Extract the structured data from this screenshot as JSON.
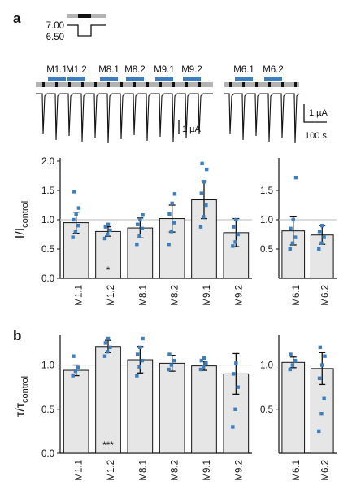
{
  "panels": {
    "a": "a",
    "b": "b"
  },
  "protocol": {
    "ph_high": "7.00",
    "ph_low": "6.50"
  },
  "trace": {
    "left_labels": [
      "M1.1",
      "M1.2",
      "M8.1",
      "M8.2",
      "M9.1",
      "M9.2"
    ],
    "right_labels": [
      "M6.1",
      "M6.2"
    ],
    "scale_left": "1 µA",
    "scale_right_current": "1 µA",
    "scale_right_time": "100 s",
    "colors": {
      "application_bar": "#3d7ebf",
      "ph_bar": "#b3b3b3",
      "trace": "#111111"
    }
  },
  "chart_data": [
    {
      "type": "bar",
      "panel": "a",
      "ylabel": "I/I",
      "ylabel_sub": "control",
      "ylim": [
        0,
        2.0
      ],
      "yticks": [
        0.0,
        0.5,
        1.0,
        1.5,
        2.0
      ],
      "reference_line": 1.0,
      "categories": [
        "M1.1",
        "M1.2",
        "M8.1",
        "M8.2",
        "M9.1",
        "M9.2"
      ],
      "values": [
        0.95,
        0.8,
        0.86,
        1.02,
        1.34,
        0.78
      ],
      "error": [
        0.18,
        0.08,
        0.17,
        0.23,
        0.32,
        0.24
      ],
      "points": [
        [
          0.7,
          0.8,
          0.9,
          1.0,
          1.1,
          1.2,
          1.48
        ],
        [
          0.68,
          0.75,
          0.82,
          0.88,
          0.92
        ],
        [
          0.58,
          0.72,
          0.85,
          0.92,
          1.0,
          1.08
        ],
        [
          0.58,
          0.8,
          0.95,
          1.1,
          1.28,
          1.44
        ],
        [
          0.88,
          1.05,
          1.25,
          1.45,
          1.65,
          1.86,
          1.96
        ],
        [
          0.55,
          0.62,
          0.75,
          0.88,
          1.0
        ]
      ],
      "annotations": [
        {
          "category": "M1.2",
          "text": "*"
        }
      ]
    },
    {
      "type": "bar",
      "panel": "a",
      "ylim": [
        0,
        2.0
      ],
      "yticks": [
        0.5,
        1.0,
        1.5
      ],
      "reference_line": 1.0,
      "categories": [
        "M6.1",
        "M6.2"
      ],
      "values": [
        0.81,
        0.74
      ],
      "error": [
        0.24,
        0.16
      ],
      "points": [
        [
          0.5,
          0.6,
          0.7,
          0.85,
          1.0,
          1.72
        ],
        [
          0.5,
          0.6,
          0.7,
          0.8,
          0.9
        ]
      ]
    },
    {
      "type": "bar",
      "panel": "b",
      "ylabel": "τ/τ",
      "ylabel_sub": "control",
      "ylim": [
        0,
        1.3
      ],
      "yticks": [
        0.0,
        0.5,
        1.0
      ],
      "reference_line": 1.0,
      "categories": [
        "M1.1",
        "M1.2",
        "M8.1",
        "M8.2",
        "M9.1",
        "M9.2"
      ],
      "values": [
        0.94,
        1.21,
        1.06,
        1.02,
        0.99,
        0.9
      ],
      "error": [
        0.06,
        0.07,
        0.15,
        0.09,
        0.05,
        0.23
      ],
      "points": [
        [
          0.88,
          0.93,
          0.97,
          1.1
        ],
        [
          1.1,
          1.15,
          1.2,
          1.25,
          1.3
        ],
        [
          0.88,
          0.98,
          1.05,
          1.12,
          1.2,
          1.3
        ],
        [
          0.95,
          1.0,
          1.05,
          1.12
        ],
        [
          0.95,
          0.98,
          1.02,
          1.05,
          1.08
        ],
        [
          0.3,
          0.5,
          0.75,
          0.9,
          1.02
        ]
      ],
      "annotations": [
        {
          "category": "M1.2",
          "text": "***"
        }
      ]
    },
    {
      "type": "bar",
      "panel": "b",
      "ylim": [
        0,
        1.3
      ],
      "yticks": [
        0.5,
        1.0
      ],
      "reference_line": 1.0,
      "categories": [
        "M6.1",
        "M6.2"
      ],
      "values": [
        1.03,
        0.96
      ],
      "error": [
        0.06,
        0.18
      ],
      "points": [
        [
          0.95,
          1.0,
          1.05,
          1.12
        ],
        [
          0.25,
          0.45,
          0.62,
          0.85,
          1.0,
          1.1,
          1.2
        ]
      ]
    }
  ]
}
